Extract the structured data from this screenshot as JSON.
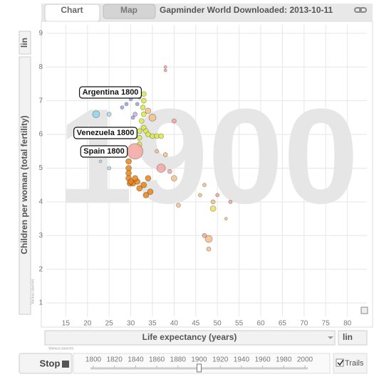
{
  "tabs": [
    "Chart",
    "Map"
  ],
  "chart_data": {
    "type": "scatter",
    "title": "Gapminder World Downloaded: 2013-10-11",
    "x_label": "Life expectancy (years)",
    "y_label": "Children per woman (total fertility)",
    "x_scale": "lin",
    "y_scale": "lin",
    "year": 1900,
    "source_note": "Various sources",
    "xlim": [
      10.5,
      84.5
    ],
    "xticks": [
      15,
      20,
      25,
      30,
      35,
      40,
      45,
      50,
      55,
      60,
      65,
      70,
      75,
      80
    ],
    "ylim": [
      0.6,
      9.25
    ],
    "yticks": [
      1,
      2,
      3,
      4,
      5,
      6,
      7,
      8,
      9
    ],
    "grid": true,
    "x": [
      29.5,
      29.5,
      29.5,
      29.5,
      29.8,
      30.5,
      31.5,
      32,
      33,
      34,
      34.5,
      33.5,
      31,
      30,
      33,
      33,
      32.8,
      33,
      32.5,
      33,
      33.5,
      34,
      35,
      36,
      37,
      32,
      32,
      32,
      32,
      31.5,
      30,
      28,
      29,
      31,
      30.5,
      22,
      25,
      31,
      37,
      38,
      39,
      40,
      41,
      49,
      48,
      47,
      48,
      49,
      50,
      53,
      52,
      46,
      47,
      36,
      38,
      38,
      34,
      35,
      40,
      25,
      23
    ],
    "y": [
      5.2,
      5.0,
      4.85,
      4.7,
      4.55,
      4.55,
      4.6,
      4.4,
      4.5,
      4.7,
      4.3,
      4.2,
      4.7,
      4.6,
      7.2,
      7.0,
      6.8,
      6.6,
      6.4,
      6.2,
      6.1,
      6.0,
      5.95,
      5.95,
      5.95,
      6.1,
      5.9,
      5.7,
      7.1,
      6.9,
      7.05,
      6.8,
      6.9,
      6.6,
      6.5,
      6.6,
      6.6,
      5.5,
      5.0,
      5.4,
      4.9,
      4.7,
      3.9,
      3.8,
      2.9,
      3.0,
      2.6,
      4.0,
      4.2,
      4.0,
      3.5,
      4.2,
      4.5,
      5.5,
      7.9,
      8.0,
      6.7,
      6.5,
      6.4,
      5.0,
      5.2
    ],
    "sizes": [
      4,
      4,
      4,
      4,
      4,
      4,
      4,
      4,
      4,
      4,
      4,
      4,
      4,
      4,
      3.5,
      3.5,
      3.5,
      3.5,
      3.5,
      3.5,
      3.5,
      3.5,
      3.5,
      3.5,
      3.5,
      3.5,
      3.5,
      3.5,
      2.5,
      2.5,
      2.5,
      2.5,
      2.5,
      3,
      2.5,
      5,
      3,
      11,
      6,
      3,
      3,
      4,
      3,
      4,
      5,
      3,
      3,
      3,
      2.5,
      2.5,
      2,
      2.5,
      2.5,
      2.5,
      2,
      2,
      4,
      5,
      3,
      2.5,
      2
    ],
    "colors": [
      "#e8831a",
      "#e8831a",
      "#e8831a",
      "#e8831a",
      "#e8831a",
      "#e8831a",
      "#e8831a",
      "#e8831a",
      "#e8831a",
      "#e8831a",
      "#e8831a",
      "#e8831a",
      "#e8831a",
      "#e8831a",
      "#dbe84a",
      "#dbe84a",
      "#dbe84a",
      "#dbe84a",
      "#dbe84a",
      "#dbe84a",
      "#dbe84a",
      "#dbe84a",
      "#dbe84a",
      "#dbe84a",
      "#dbe84a",
      "#dbe84a",
      "#dbe84a",
      "#dbe84a",
      "#9aa6e6",
      "#9aa6e6",
      "#9aa6e6",
      "#9aa6e6",
      "#9aa6e6",
      "#c8b0e0",
      "#9aa6e6",
      "#8fd3e8",
      "#b0d8e8",
      "#f4a6a0",
      "#f4a6a0",
      "#f5c08a",
      "#f4a6a0",
      "#f5c08a",
      "#f5c08a",
      "#f0e060",
      "#f5c08a",
      "#f4a6a0",
      "#f5c08a",
      "#f5c08a",
      "#f4a6a0",
      "#f4a6a0",
      "#f5c08a",
      "#f5c08a",
      "#f5c08a",
      "#f5c08a",
      "#f4a6a0",
      "#f4a6a0",
      "#f5c08a",
      "#f5c08a",
      "#f4a6a0",
      "#b0d8e8",
      "#b0d8e8"
    ],
    "annotations": [
      "Argentina 1800",
      "Venezuela 1800",
      "Spain 1800"
    ]
  },
  "timeline": {
    "ticks": [
      1800,
      1820,
      1840,
      1860,
      1880,
      1900,
      1920,
      1940,
      1960,
      1980,
      2000
    ],
    "value": 1900,
    "play_button": "Stop",
    "trails_label": "Trails",
    "trails": true
  }
}
